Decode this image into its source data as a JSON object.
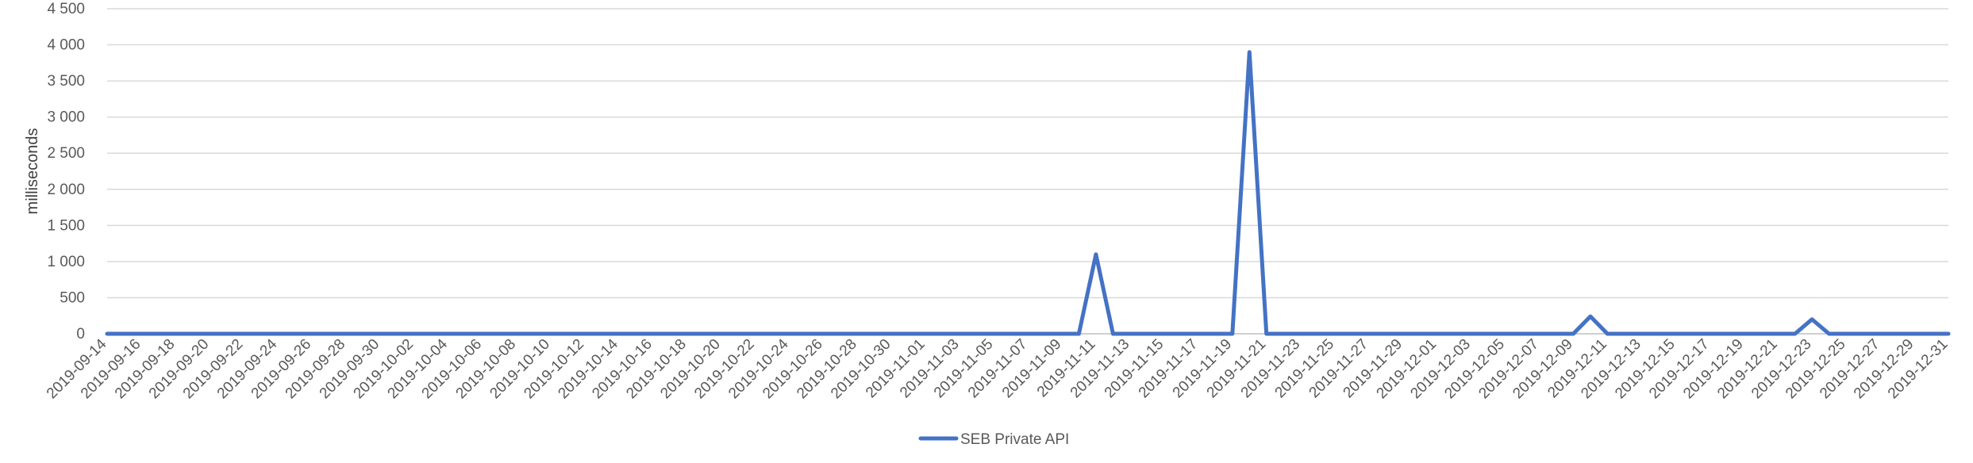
{
  "chart_data": {
    "type": "line",
    "title": "",
    "xlabel": "",
    "ylabel": "milliseconds",
    "ylim": [
      0,
      4500
    ],
    "y_ticks": [
      "0",
      "500",
      "1 000",
      "1 500",
      "2 000",
      "2 500",
      "3 000",
      "3 500",
      "4 000",
      "4 500"
    ],
    "y_tick_values": [
      0,
      500,
      1000,
      1500,
      2000,
      2500,
      3000,
      3500,
      4000,
      4500
    ],
    "grid": true,
    "legend_position": "bottom",
    "series_color": "#4472C4",
    "x_tick_labels": [
      "2019-09-14",
      "2019-09-16",
      "2019-09-18",
      "2019-09-20",
      "2019-09-22",
      "2019-09-24",
      "2019-09-26",
      "2019-09-28",
      "2019-09-30",
      "2019-10-02",
      "2019-10-04",
      "2019-10-06",
      "2019-10-08",
      "2019-10-10",
      "2019-10-12",
      "2019-10-14",
      "2019-10-16",
      "2019-10-18",
      "2019-10-20",
      "2019-10-22",
      "2019-10-24",
      "2019-10-26",
      "2019-10-28",
      "2019-10-30",
      "2019-11-01",
      "2019-11-03",
      "2019-11-05",
      "2019-11-07",
      "2019-11-09",
      "2019-11-11",
      "2019-11-13",
      "2019-11-15",
      "2019-11-17",
      "2019-11-19",
      "2019-11-21",
      "2019-11-23",
      "2019-11-25",
      "2019-11-27",
      "2019-11-29",
      "2019-12-01",
      "2019-12-03",
      "2019-12-05",
      "2019-12-07",
      "2019-12-09",
      "2019-12-11",
      "2019-12-13",
      "2019-12-15",
      "2019-12-17",
      "2019-12-19",
      "2019-12-21",
      "2019-12-23",
      "2019-12-25",
      "2019-12-27",
      "2019-12-29",
      "2019-12-31"
    ],
    "series": [
      {
        "name": "SEB Private API",
        "points": [
          {
            "x": "2019-09-14",
            "y": 0
          },
          {
            "x": "2019-11-10",
            "y": 0
          },
          {
            "x": "2019-11-11",
            "y": 1100
          },
          {
            "x": "2019-11-12",
            "y": 0
          },
          {
            "x": "2019-11-19",
            "y": 0
          },
          {
            "x": "2019-11-20",
            "y": 3900
          },
          {
            "x": "2019-11-21",
            "y": 0
          },
          {
            "x": "2019-12-09",
            "y": 0
          },
          {
            "x": "2019-12-10",
            "y": 240
          },
          {
            "x": "2019-12-11",
            "y": 0
          },
          {
            "x": "2019-12-22",
            "y": 0
          },
          {
            "x": "2019-12-23",
            "y": 200
          },
          {
            "x": "2019-12-24",
            "y": 0
          },
          {
            "x": "2019-12-31",
            "y": 0
          }
        ]
      }
    ]
  }
}
